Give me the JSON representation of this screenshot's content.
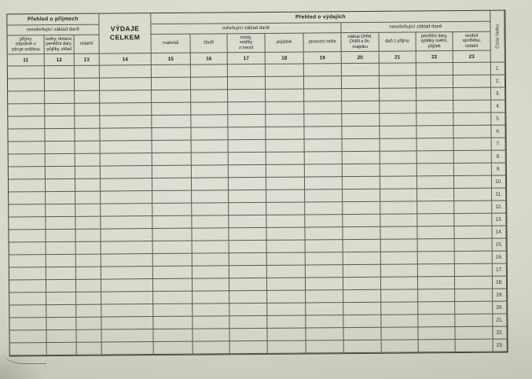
{
  "colors": {
    "paper": "#d6d8ca",
    "grid_line": "#5a5a50",
    "outer_border": "#3a3a32",
    "text": "#201f1b"
  },
  "table": {
    "income": {
      "title": "Přehled o příjmech",
      "subtitle": "neovlivňující základ daně",
      "columns": [
        {
          "label": "příjmy\nzdaněné u\nzdroje srážkou",
          "num": "11"
        },
        {
          "label": "úvěry, dotace,\npeněžní dary,\npůjčky, vklad",
          "num": "12"
        },
        {
          "label": "ostatní",
          "num": "13"
        }
      ]
    },
    "total": {
      "label": "VÝDAJE\nCELKEM",
      "num": "14"
    },
    "expenses": {
      "title": "Přehled o výdajích",
      "affecting": {
        "subtitle": "ovlivňující základ daně",
        "columns": [
          {
            "label": "materiál",
            "num": "15"
          },
          {
            "label": "zboží",
            "num": "16"
          },
          {
            "label": "mzdy,\nsrážky\nz mezd",
            "num": "17"
          },
          {
            "label": "pojistné",
            "num": "18"
          },
          {
            "label": "provozní režie",
            "num": "19"
          }
        ]
      },
      "not_affecting": {
        "subtitle": "neovlivňující základ daně",
        "columns": [
          {
            "label": "nákup DHM,\nDNM a fin.\nmajetku",
            "num": "20"
          },
          {
            "label": "daň z příjmu",
            "num": "21"
          },
          {
            "label": "peněžní dary,\nsplátky úvěrů,\npůjček",
            "num": "22"
          },
          {
            "label": "osobní\nspotřeba,\nostatní",
            "num": "23"
          }
        ]
      }
    },
    "row_number_column": {
      "label": "Číslo řádku"
    },
    "row_numbers": [
      "1.",
      "2.",
      "3.",
      "4.",
      "5.",
      "6.",
      "7.",
      "8.",
      "9.",
      "10.",
      "11.",
      "12.",
      "13.",
      "14.",
      "15.",
      "16.",
      "17.",
      "18.",
      "19.",
      "20.",
      "21.",
      "22.",
      "23."
    ]
  }
}
